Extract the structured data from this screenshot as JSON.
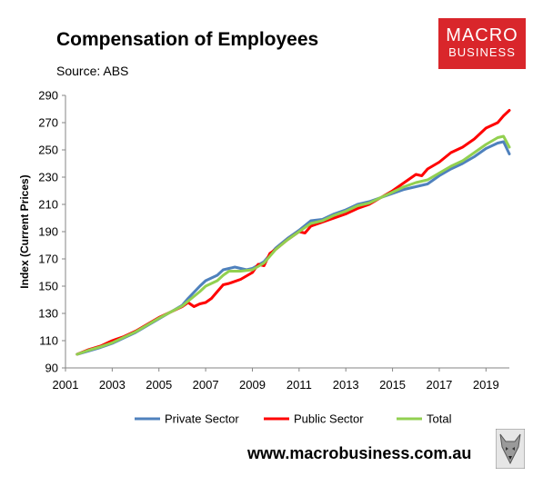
{
  "header": {
    "title": "Compensation of Employees",
    "source": "Source: ABS"
  },
  "logo": {
    "line1": "MACRO",
    "line2": "BUSINESS"
  },
  "footer": {
    "url": "www.macrobusiness.com.au"
  },
  "colors": {
    "private": "#4f81bd",
    "public": "#ff0000",
    "total": "#92d050",
    "logo_bg": "#d9262b"
  },
  "chart_data": {
    "type": "line",
    "xlabel": "",
    "ylabel": "Index (Current Prices)",
    "xlim": [
      2001,
      2020
    ],
    "ylim": [
      90,
      290
    ],
    "x_ticks": [
      2001,
      2003,
      2005,
      2007,
      2009,
      2011,
      2013,
      2015,
      2017,
      2019
    ],
    "y_ticks": [
      90,
      110,
      130,
      150,
      170,
      190,
      210,
      230,
      250,
      270,
      290
    ],
    "legend_position": "bottom",
    "grid": false,
    "series": [
      {
        "name": "Private Sector",
        "color": "#4f81bd",
        "points": [
          [
            2001.5,
            100
          ],
          [
            2002,
            102.5
          ],
          [
            2002.5,
            105
          ],
          [
            2003,
            108
          ],
          [
            2003.5,
            112
          ],
          [
            2004,
            116
          ],
          [
            2004.5,
            121
          ],
          [
            2005,
            126
          ],
          [
            2005.5,
            131
          ],
          [
            2006,
            136
          ],
          [
            2006.25,
            141
          ],
          [
            2006.75,
            150
          ],
          [
            2007,
            154
          ],
          [
            2007.5,
            158
          ],
          [
            2007.75,
            162
          ],
          [
            2008,
            163
          ],
          [
            2008.25,
            164
          ],
          [
            2008.75,
            162
          ],
          [
            2009,
            163
          ],
          [
            2009.5,
            168
          ],
          [
            2010,
            178
          ],
          [
            2010.5,
            185
          ],
          [
            2011,
            191
          ],
          [
            2011.5,
            198
          ],
          [
            2012,
            199
          ],
          [
            2012.5,
            203
          ],
          [
            2013,
            206
          ],
          [
            2013.5,
            210
          ],
          [
            2014,
            212
          ],
          [
            2014.5,
            215
          ],
          [
            2015,
            218
          ],
          [
            2015.5,
            221
          ],
          [
            2016,
            223
          ],
          [
            2016.5,
            225
          ],
          [
            2017,
            231
          ],
          [
            2017.5,
            236
          ],
          [
            2018,
            240
          ],
          [
            2018.5,
            245
          ],
          [
            2019,
            251
          ],
          [
            2019.5,
            255
          ],
          [
            2019.75,
            256
          ],
          [
            2020,
            247
          ]
        ]
      },
      {
        "name": "Public Sector",
        "color": "#ff0000",
        "points": [
          [
            2001.5,
            100
          ],
          [
            2002,
            103.5
          ],
          [
            2002.5,
            106
          ],
          [
            2003,
            110
          ],
          [
            2003.5,
            113
          ],
          [
            2004,
            117
          ],
          [
            2004.5,
            122
          ],
          [
            2005,
            127
          ],
          [
            2005.5,
            131
          ],
          [
            2006,
            135
          ],
          [
            2006.25,
            138
          ],
          [
            2006.5,
            135
          ],
          [
            2006.75,
            137
          ],
          [
            2007,
            138
          ],
          [
            2007.25,
            141
          ],
          [
            2007.5,
            146
          ],
          [
            2007.75,
            151
          ],
          [
            2008,
            152
          ],
          [
            2008.5,
            155
          ],
          [
            2009,
            160
          ],
          [
            2009.25,
            166
          ],
          [
            2009.5,
            165
          ],
          [
            2009.75,
            174
          ],
          [
            2010,
            177
          ],
          [
            2010.5,
            184
          ],
          [
            2011,
            190
          ],
          [
            2011.25,
            189
          ],
          [
            2011.5,
            194
          ],
          [
            2012,
            197
          ],
          [
            2012.5,
            200
          ],
          [
            2013,
            203
          ],
          [
            2013.5,
            207
          ],
          [
            2014,
            210
          ],
          [
            2014.5,
            215
          ],
          [
            2015,
            220
          ],
          [
            2015.5,
            226
          ],
          [
            2016,
            232
          ],
          [
            2016.25,
            231
          ],
          [
            2016.5,
            236
          ],
          [
            2017,
            241
          ],
          [
            2017.5,
            248
          ],
          [
            2018,
            252
          ],
          [
            2018.5,
            258
          ],
          [
            2019,
            266
          ],
          [
            2019.5,
            270
          ],
          [
            2019.75,
            275
          ],
          [
            2020,
            279
          ]
        ]
      },
      {
        "name": "Total",
        "color": "#92d050",
        "points": [
          [
            2001.5,
            100
          ],
          [
            2002,
            103
          ],
          [
            2002.5,
            105.5
          ],
          [
            2003,
            108.5
          ],
          [
            2003.5,
            112.5
          ],
          [
            2004,
            116.5
          ],
          [
            2004.5,
            121.5
          ],
          [
            2005,
            126.5
          ],
          [
            2005.5,
            131
          ],
          [
            2006,
            135.5
          ],
          [
            2006.25,
            139
          ],
          [
            2006.75,
            146
          ],
          [
            2007,
            150
          ],
          [
            2007.5,
            154
          ],
          [
            2007.75,
            158
          ],
          [
            2008,
            161
          ],
          [
            2008.5,
            161
          ],
          [
            2009,
            162
          ],
          [
            2009.5,
            167
          ],
          [
            2010,
            177
          ],
          [
            2010.5,
            184
          ],
          [
            2011,
            190
          ],
          [
            2011.5,
            196
          ],
          [
            2012,
            198
          ],
          [
            2012.5,
            202
          ],
          [
            2013,
            205
          ],
          [
            2013.5,
            209
          ],
          [
            2014,
            211
          ],
          [
            2014.5,
            215
          ],
          [
            2015,
            219
          ],
          [
            2015.5,
            223
          ],
          [
            2016,
            226
          ],
          [
            2016.5,
            228
          ],
          [
            2017,
            233
          ],
          [
            2017.5,
            238
          ],
          [
            2018,
            242
          ],
          [
            2018.5,
            248
          ],
          [
            2019,
            254
          ],
          [
            2019.5,
            259
          ],
          [
            2019.75,
            260
          ],
          [
            2020,
            252
          ]
        ]
      }
    ]
  }
}
